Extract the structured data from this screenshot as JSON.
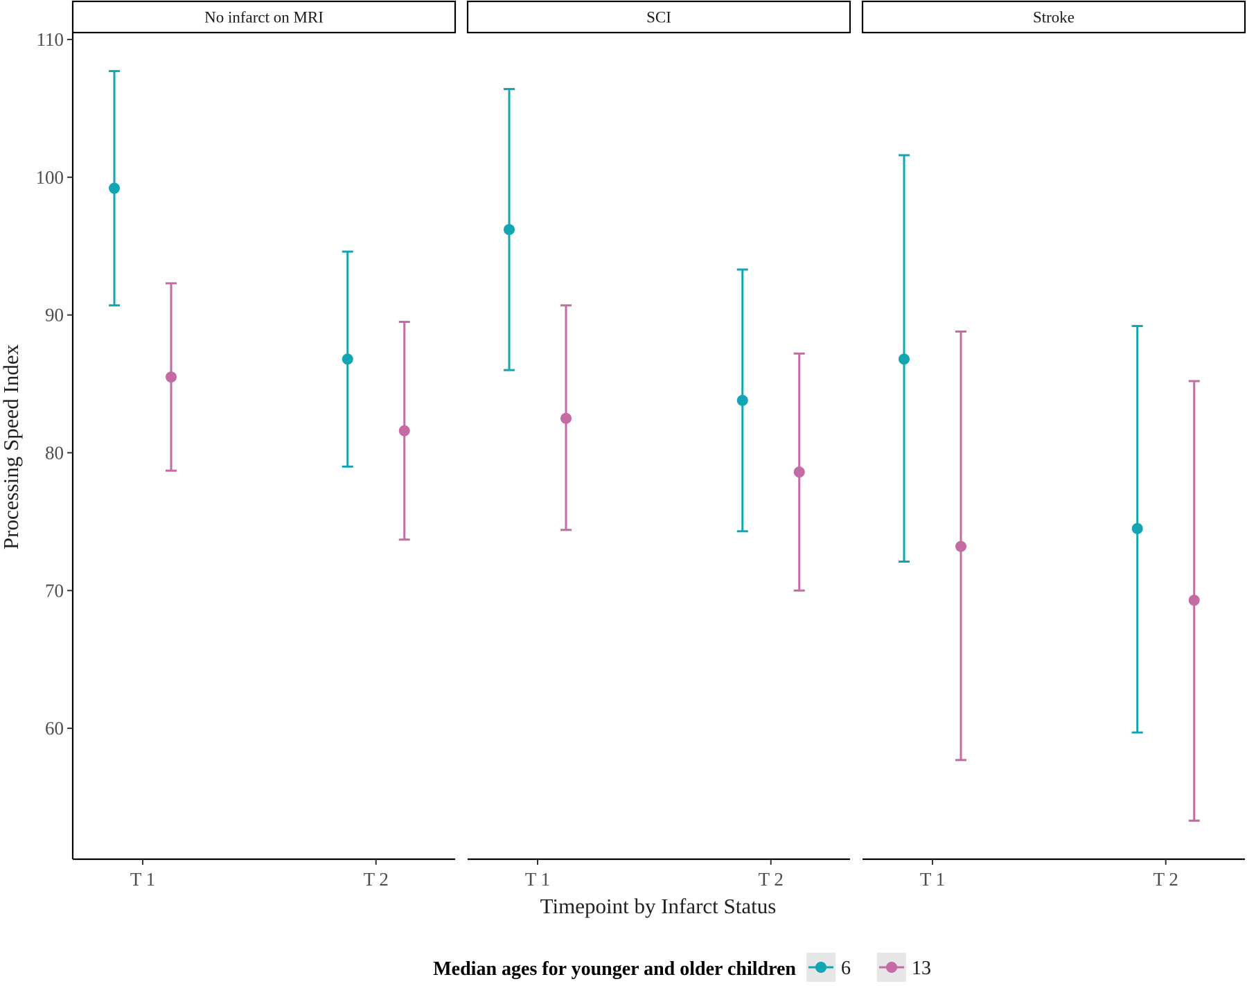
{
  "chart_data": {
    "type": "errorbar",
    "xlabel": "Timepoint by Infarct Status",
    "ylabel": "Processing Speed Index",
    "ylim": [
      50.5,
      110.5
    ],
    "yticks": [
      60,
      70,
      80,
      90,
      100,
      110
    ],
    "categories": [
      "T 1",
      "T 2"
    ],
    "grid": false,
    "legend": {
      "title": "Median ages for younger and older children",
      "position": "bottom",
      "entries": [
        "6",
        "13"
      ]
    },
    "series": [
      {
        "name": "6",
        "color": "#12A5B3"
      },
      {
        "name": "13",
        "color": "#C46BA4"
      }
    ],
    "facets": [
      {
        "label": "No infarct on MRI",
        "points": [
          {
            "x": "T 1",
            "group": "6",
            "y": 99.2,
            "ymin": 90.7,
            "ymax": 107.7
          },
          {
            "x": "T 1",
            "group": "13",
            "y": 85.5,
            "ymin": 78.7,
            "ymax": 92.3
          },
          {
            "x": "T 2",
            "group": "6",
            "y": 86.8,
            "ymin": 79.0,
            "ymax": 94.6
          },
          {
            "x": "T 2",
            "group": "13",
            "y": 81.6,
            "ymin": 73.7,
            "ymax": 89.5
          }
        ]
      },
      {
        "label": "SCI",
        "points": [
          {
            "x": "T 1",
            "group": "6",
            "y": 96.2,
            "ymin": 86.0,
            "ymax": 106.4
          },
          {
            "x": "T 1",
            "group": "13",
            "y": 82.5,
            "ymin": 74.4,
            "ymax": 90.7
          },
          {
            "x": "T 2",
            "group": "6",
            "y": 83.8,
            "ymin": 74.3,
            "ymax": 93.3
          },
          {
            "x": "T 2",
            "group": "13",
            "y": 78.6,
            "ymin": 70.0,
            "ymax": 87.2
          }
        ]
      },
      {
        "label": "Stroke",
        "points": [
          {
            "x": "T 1",
            "group": "6",
            "y": 86.8,
            "ymin": 72.1,
            "ymax": 101.6
          },
          {
            "x": "T 1",
            "group": "13",
            "y": 73.2,
            "ymin": 57.7,
            "ymax": 88.8
          },
          {
            "x": "T 2",
            "group": "6",
            "y": 74.5,
            "ymin": 59.7,
            "ymax": 89.2
          },
          {
            "x": "T 2",
            "group": "13",
            "y": 69.3,
            "ymin": 53.3,
            "ymax": 85.2
          }
        ]
      }
    ]
  }
}
